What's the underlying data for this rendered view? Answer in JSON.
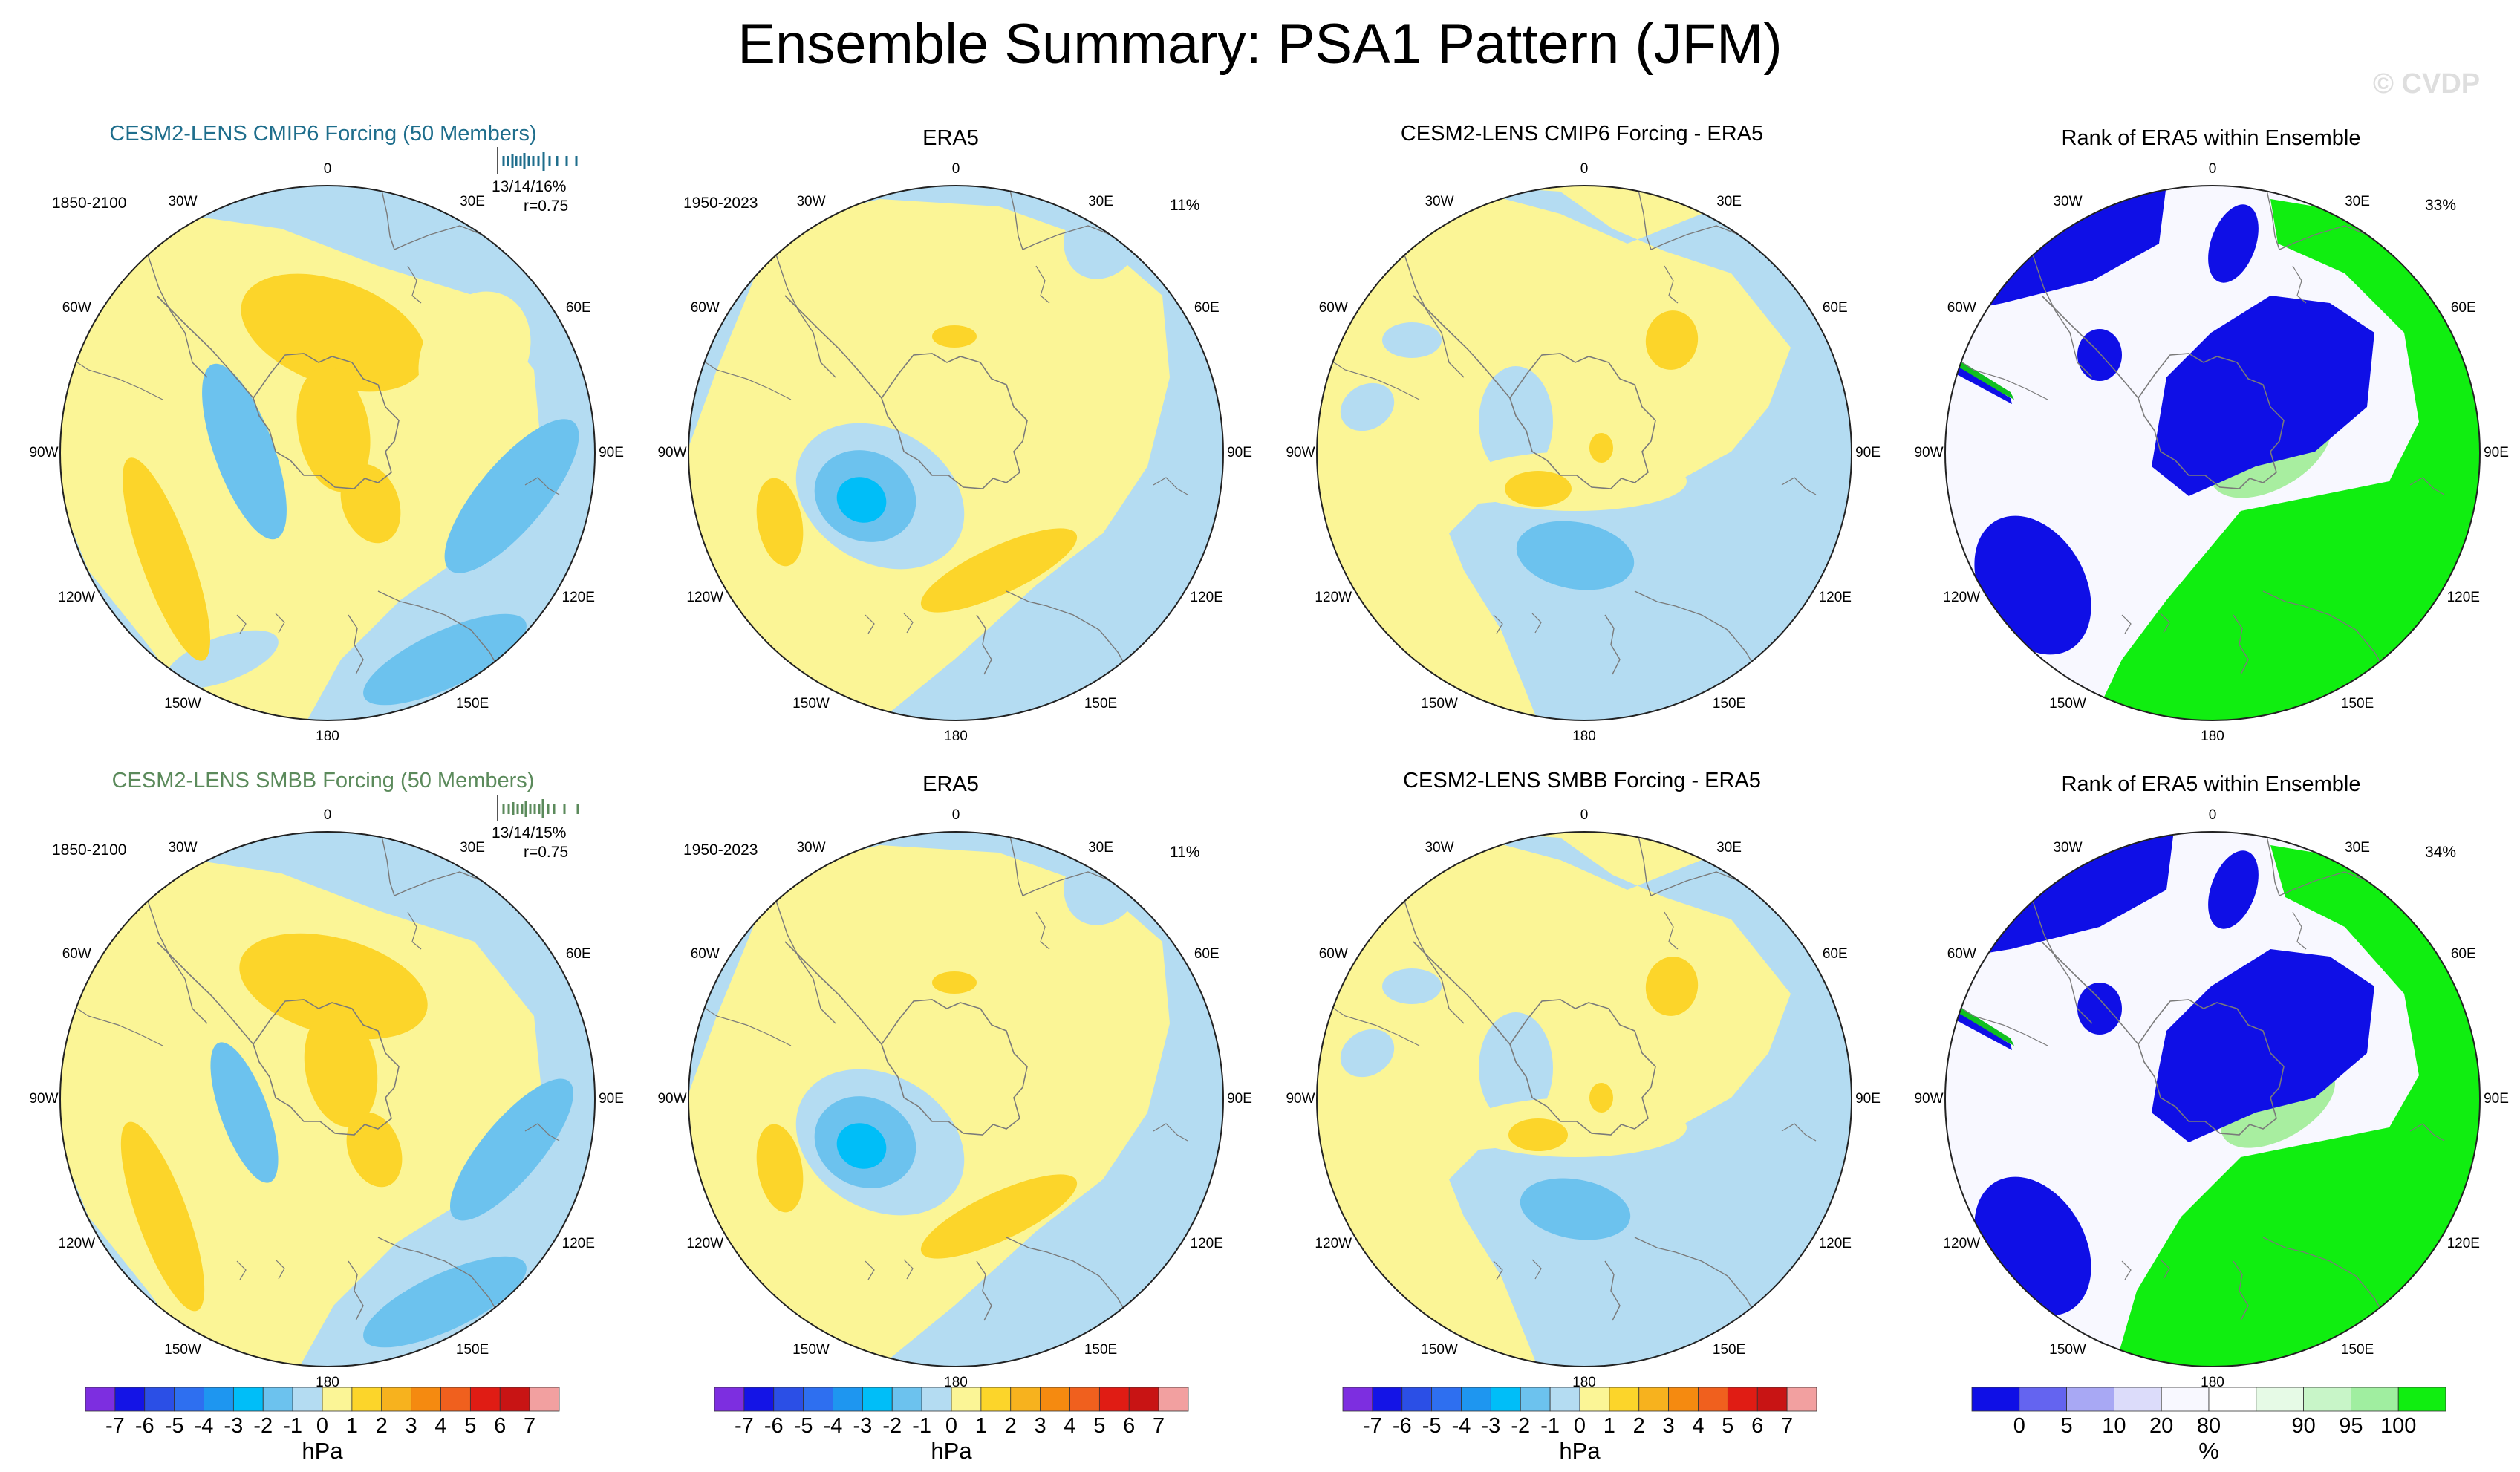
{
  "title": "Ensemble Summary: PSA1 Pattern (JFM)",
  "watermark": "© CVDP",
  "lon_labels": [
    "0",
    "30E",
    "60E",
    "90E",
    "120E",
    "150E",
    "180",
    "150W",
    "120W",
    "90W",
    "60W",
    "30W"
  ],
  "palette": {
    "neg3": "#1e96f0",
    "neg2": "#6cc2ee",
    "neg1": "#b4dcf2",
    "pos1": "#fbf596",
    "pos2": "#fcd52a",
    "pos3": "#f7b21e",
    "rank_blue": "#0f0fe6",
    "rank_white": "#f8f8ff",
    "rank_green": "#10ee10",
    "rank_lightgreen": "#a8eea0"
  },
  "panels": [
    {
      "title": "CESM2-LENS CMIP6 Forcing (50 Members)",
      "title_color": "#1f6e8c",
      "period": "1850-2100",
      "stats": "13/14/16%",
      "corr": "r=0.75",
      "map": "ens1"
    },
    {
      "title": "ERA5",
      "period": "1950-2023",
      "pct": "11%",
      "map": "era5"
    },
    {
      "title": "CESM2-LENS CMIP6 Forcing - ERA5",
      "map": "diff1"
    },
    {
      "title": "Rank of ERA5 within Ensemble",
      "pct": "33%",
      "map": "rank1"
    },
    {
      "title": "CESM2-LENS SMBB Forcing (50 Members)",
      "title_color": "#5b8a5b",
      "period": "1850-2100",
      "stats": "13/14/15%",
      "corr": "r=0.75",
      "map": "ens2"
    },
    {
      "title": "ERA5",
      "period": "1950-2023",
      "pct": "11%",
      "map": "era5"
    },
    {
      "title": "CESM2-LENS SMBB Forcing - ERA5",
      "map": "diff2"
    },
    {
      "title": "Rank of ERA5 within Ensemble",
      "pct": "34%",
      "map": "rank2"
    }
  ],
  "colorbars": {
    "hpa": {
      "colors": [
        "#7d2ee0",
        "#1414e6",
        "#2b4fe6",
        "#2e6ff0",
        "#1e96f0",
        "#00bef8",
        "#6cc2ee",
        "#b4dcf2",
        "#fbf596",
        "#fcd52a",
        "#f7b21e",
        "#f58a10",
        "#f0601e",
        "#e01c14",
        "#c81414",
        "#f2a0a0"
      ],
      "labels": [
        "-7",
        "-6",
        "-5",
        "-4",
        "-3",
        "-2",
        "-1",
        "0",
        "1",
        "2",
        "3",
        "4",
        "5",
        "6",
        "7"
      ],
      "unit": "hPa"
    },
    "rank": {
      "colors": [
        "#0f0fe6",
        "#6464f0",
        "#a8a8f4",
        "#dcdcfa",
        "#f8f8ff",
        "#ffffff",
        "#e6fae6",
        "#c8f5c8",
        "#a0eea0",
        "#10ee10"
      ],
      "labels": [
        "0",
        "5",
        "10",
        "20",
        "80",
        "90",
        "95",
        "100"
      ],
      "unit": "%"
    }
  }
}
